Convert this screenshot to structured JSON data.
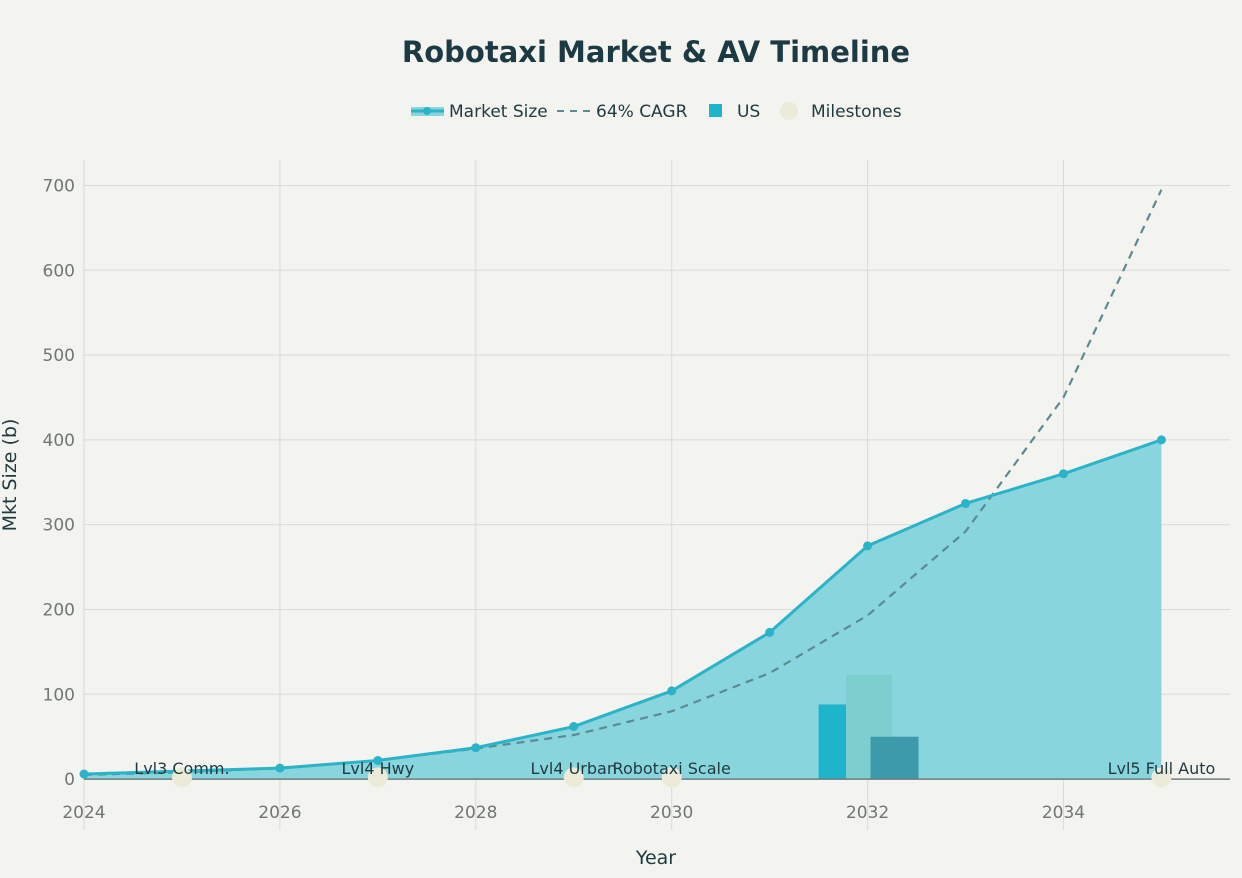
{
  "chart_data": {
    "type": "area",
    "title": "Robotaxi Market & AV Timeline",
    "xlabel": "Year",
    "ylabel": "Mkt Size (b)",
    "xlim": [
      2024,
      2035.7
    ],
    "ylim": [
      -60,
      730
    ],
    "xticks": [
      2024,
      2026,
      2028,
      2030,
      2032,
      2034
    ],
    "yticks": [
      0,
      100,
      200,
      300,
      400,
      500,
      600,
      700
    ],
    "grid": true,
    "legend_position": "top-center",
    "legend": [
      {
        "label": "Market Size",
        "kind": "area-line"
      },
      {
        "label": "64% CAGR",
        "kind": "dash"
      },
      {
        "label": "US",
        "kind": "square"
      },
      {
        "label": "Milestones",
        "kind": "dot"
      }
    ],
    "series": [
      {
        "name": "Market Size",
        "kind": "area",
        "x": [
          2024,
          2026,
          2027,
          2028,
          2029,
          2030,
          2031,
          2032,
          2033,
          2034,
          2035
        ],
        "y": [
          6,
          13,
          22,
          37,
          62,
          104,
          173,
          275,
          325,
          360,
          400
        ]
      },
      {
        "name": "64% CAGR",
        "kind": "dashed-line",
        "x": [
          2024,
          2025,
          2026,
          2027,
          2028,
          2029,
          2030,
          2031,
          2032,
          2033,
          2034,
          2035
        ],
        "y": [
          5,
          8,
          13,
          22,
          36,
          52,
          80,
          125,
          193,
          292,
          450,
          695
        ]
      },
      {
        "name": "US",
        "kind": "bars",
        "bars": [
          {
            "x0": 2031.5,
            "x1": 2031.78,
            "y": 88,
            "color": "#1db4cc"
          },
          {
            "x0": 2031.78,
            "x1": 2032.25,
            "y": 123,
            "color": "#7dcfcf"
          },
          {
            "x0": 2032.03,
            "x1": 2032.52,
            "y": 50,
            "color": "#3c9aaa"
          }
        ]
      },
      {
        "name": "Milestones",
        "kind": "markers",
        "points": [
          {
            "x": 2025,
            "y": 2,
            "label": "Lvl3 Comm."
          },
          {
            "x": 2027,
            "y": 2,
            "label": "Lvl4 Hwy"
          },
          {
            "x": 2029,
            "y": 2,
            "label": "Lvl4 Urban"
          },
          {
            "x": 2030,
            "y": 2,
            "label": "Robotaxi Scale"
          },
          {
            "x": 2035,
            "y": 2,
            "label": "Lvl5 Full Auto"
          }
        ]
      }
    ]
  },
  "colors": {
    "area_fill": "#88d5de",
    "line": "#2ab3c9",
    "dash": "#5b8a92",
    "milestone": "#ecebd9",
    "grid": "#d9dbd7",
    "zero_line": "#6e7b7e"
  }
}
